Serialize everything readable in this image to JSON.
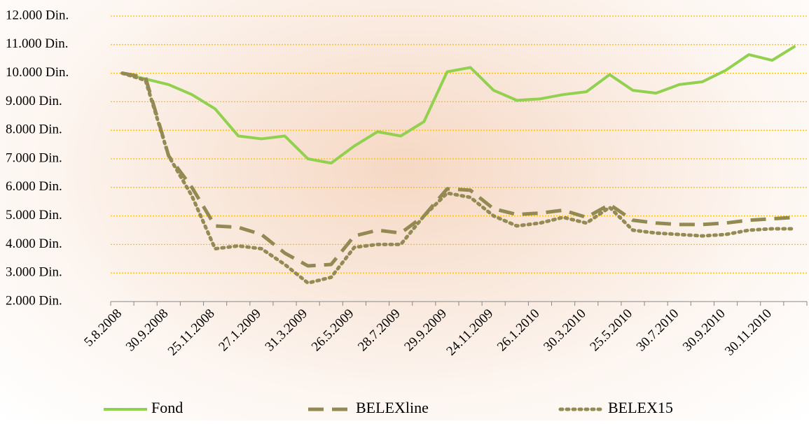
{
  "chart_data": {
    "type": "line",
    "categories": [
      "5.8.2008",
      null,
      "30.9.2008",
      null,
      "25.11.2008",
      null,
      "27.1.2009",
      null,
      "31.3.2009",
      null,
      "26.5.2009",
      null,
      "28.7.2009",
      null,
      "29.9.2009",
      null,
      "24.11.2009",
      null,
      "26.1.2010",
      null,
      "30.3.2010",
      null,
      "25.5.2010",
      null,
      "30.7.2010",
      null,
      "30.9.2010",
      null,
      "30.11.2010",
      null
    ],
    "series": [
      {
        "name": "Fond",
        "color": "#92d050",
        "line_style": "solid",
        "values": [
          10000,
          9800,
          9600,
          9250,
          8750,
          7800,
          7700,
          7800,
          7000,
          6850,
          7450,
          7950,
          7800,
          8300,
          10050,
          10200,
          9400,
          9050,
          9100,
          9250,
          9350,
          9950,
          9400,
          9300,
          9600,
          9700,
          10100,
          10650,
          10450,
          10950
        ]
      },
      {
        "name": "BELEXline",
        "color": "#938953",
        "line_style": "dashed",
        "values": [
          10000,
          9850,
          7100,
          6000,
          4650,
          4600,
          4350,
          3700,
          3250,
          3300,
          4300,
          4500,
          4400,
          5000,
          5950,
          5900,
          5250,
          5050,
          5100,
          5200,
          4950,
          5400,
          4850,
          4750,
          4700,
          4700,
          4750,
          4850,
          4900,
          4950
        ]
      },
      {
        "name": "BELEX15",
        "color": "#948a54",
        "line_style": "dotted",
        "values": [
          10000,
          9750,
          7100,
          5700,
          3850,
          3950,
          3850,
          3300,
          2650,
          2850,
          3900,
          4000,
          4000,
          5000,
          5800,
          5650,
          5000,
          4650,
          4750,
          4950,
          4750,
          5300,
          4500,
          4400,
          4350,
          4300,
          4350,
          4500,
          4550,
          4550
        ]
      }
    ],
    "ylim": [
      2000,
      12000
    ],
    "yticks": [
      {
        "value": 2000,
        "label": "2.000 Din."
      },
      {
        "value": 3000,
        "label": "3.000 Din."
      },
      {
        "value": 4000,
        "label": "4.000 Din."
      },
      {
        "value": 5000,
        "label": "5.000 Din."
      },
      {
        "value": 6000,
        "label": "6.000 Din."
      },
      {
        "value": 7000,
        "label": "7.000 Din."
      },
      {
        "value": 8000,
        "label": "8.000 Din."
      },
      {
        "value": 9000,
        "label": "9.000 Din."
      },
      {
        "value": 10000,
        "label": "10.000 Din."
      },
      {
        "value": 11000,
        "label": "11.000 Din."
      },
      {
        "value": 12000,
        "label": "12.000 Din."
      }
    ],
    "grid": true,
    "grid_color": "#ffc000",
    "legend": "bottom"
  }
}
